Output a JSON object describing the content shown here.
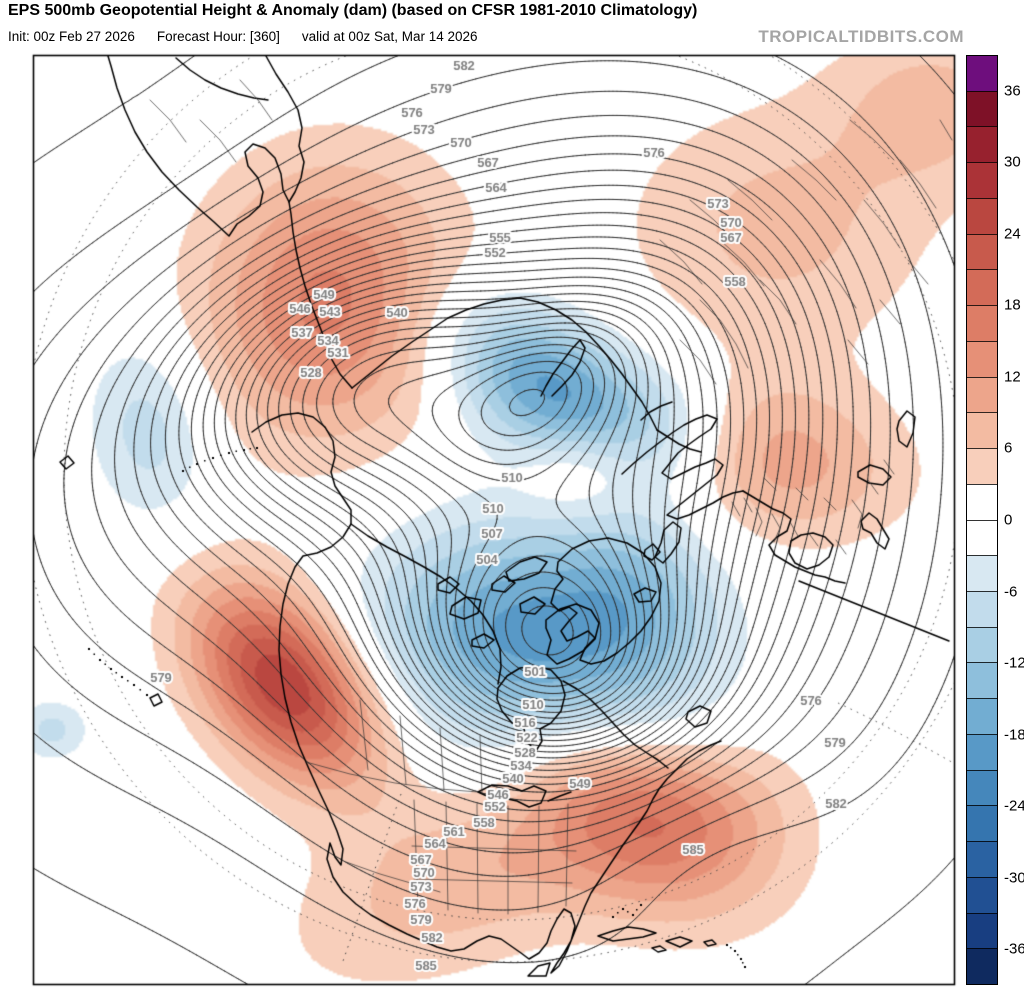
{
  "header": {
    "title": "EPS 500mb Geopotential Height & Anomaly (dam) (based on CFSR 1981-2010 Climatology)",
    "init": "Init: 00z Feb 27 2026",
    "forecast_hour": "Forecast Hour: [360]",
    "valid": "valid at 00z Sat, Mar 14 2026",
    "watermark": "TROPICALTIDBITS.COM"
  },
  "colorbar": {
    "tick_labels": [
      "36",
      "30",
      "24",
      "18",
      "12",
      "6",
      "0",
      "-6",
      "-12",
      "-18",
      "-24",
      "-30",
      "-36"
    ],
    "segment_step": 3,
    "tick_interval": 6
  },
  "anomaly_palette": {
    "over": "#6e0e7d",
    "positive": [
      "#f8cfbb",
      "#f3bba2",
      "#eda58b",
      "#e69077",
      "#dd7d66",
      "#d36b58",
      "#c85a4c",
      "#ba4740",
      "#ab3337",
      "#97212e",
      "#7e1127"
    ],
    "zero": "#ffffff",
    "negative": [
      "#d8e8f2",
      "#c2dcec",
      "#a9cfe4",
      "#8ebfdc",
      "#72add2",
      "#5899c7",
      "#4587bb",
      "#3575af",
      "#2a62a2",
      "#215093",
      "#183e81"
    ],
    "under": "#0f2a5f"
  },
  "map": {
    "units": "dam",
    "contour_interval": 3,
    "contour_labels": [
      [
        582,
        464,
        66
      ],
      [
        579,
        441,
        89
      ],
      [
        576,
        412,
        113
      ],
      [
        573,
        424,
        130
      ],
      [
        570,
        461,
        143
      ],
      [
        567,
        488,
        163
      ],
      [
        564,
        496,
        188
      ],
      [
        555,
        500,
        238
      ],
      [
        552,
        495,
        253
      ],
      [
        576,
        654,
        153
      ],
      [
        573,
        718,
        204
      ],
      [
        570,
        731,
        223
      ],
      [
        567,
        731,
        238
      ],
      [
        558,
        735,
        282
      ],
      [
        549,
        324,
        295
      ],
      [
        546,
        300,
        309
      ],
      [
        543,
        330,
        312
      ],
      [
        540,
        397,
        313
      ],
      [
        537,
        302,
        333
      ],
      [
        534,
        328,
        341
      ],
      [
        531,
        338,
        353
      ],
      [
        528,
        311,
        373
      ],
      [
        510,
        512,
        478
      ],
      [
        510,
        493,
        509
      ],
      [
        507,
        492,
        534
      ],
      [
        504,
        487,
        560
      ],
      [
        501,
        535,
        672
      ],
      [
        510,
        533,
        705
      ],
      [
        516,
        525,
        723
      ],
      [
        522,
        527,
        738
      ],
      [
        528,
        525,
        753
      ],
      [
        534,
        521,
        766
      ],
      [
        540,
        513,
        779
      ],
      [
        546,
        498,
        795
      ],
      [
        552,
        495,
        807
      ],
      [
        558,
        484,
        823
      ],
      [
        561,
        454,
        832
      ],
      [
        564,
        435,
        844
      ],
      [
        567,
        421,
        860
      ],
      [
        570,
        424,
        873
      ],
      [
        573,
        421,
        887
      ],
      [
        576,
        415,
        904
      ],
      [
        579,
        421,
        920
      ],
      [
        582,
        432,
        938
      ],
      [
        585,
        426,
        966
      ],
      [
        549,
        580,
        784
      ],
      [
        585,
        693,
        850
      ],
      [
        582,
        836,
        804
      ],
      [
        579,
        835,
        743
      ],
      [
        576,
        811,
        701
      ],
      [
        579,
        161,
        678
      ]
    ]
  },
  "chart_data": {
    "type": "contour-map",
    "title": "EPS 500mb Geopotential Height & Anomaly (dam)",
    "contour_levels_dam": {
      "min": 501,
      "max": 585,
      "interval": 3
    },
    "anomaly_scale_dam": {
      "min": -39,
      "max": 39,
      "band_step": 3,
      "tick_interval": 6
    },
    "height_extrema": [
      {
        "kind": "low",
        "value_dam": 501,
        "region": "northeast Canada / Baffin Island"
      },
      {
        "kind": "low",
        "value_dam": 504,
        "region": "Arctic near Novaya Zemlya"
      },
      {
        "kind": "high",
        "value_dam": 585,
        "region": "subtropical belt along map edges"
      }
    ],
    "anomaly_centers": [
      {
        "sign": "positive",
        "peak_dam": 27,
        "region": "NE Pacific / western North America"
      },
      {
        "sign": "positive",
        "peak_dam": 22,
        "region": "western Atlantic"
      },
      {
        "sign": "positive",
        "peak_dam": 16,
        "region": "Sea of Okhotsk / E Siberia"
      },
      {
        "sign": "positive",
        "peak_dam": 12,
        "region": "Europe"
      },
      {
        "sign": "positive",
        "peak_dam": 7,
        "region": "central Asia"
      },
      {
        "sign": "negative",
        "peak_dam": -19,
        "region": "Kara Sea / Arctic"
      },
      {
        "sign": "negative",
        "peak_dam": -17,
        "region": "NE Canada"
      },
      {
        "sign": "negative",
        "peak_dam": -8,
        "region": "central North Pacific"
      }
    ]
  }
}
